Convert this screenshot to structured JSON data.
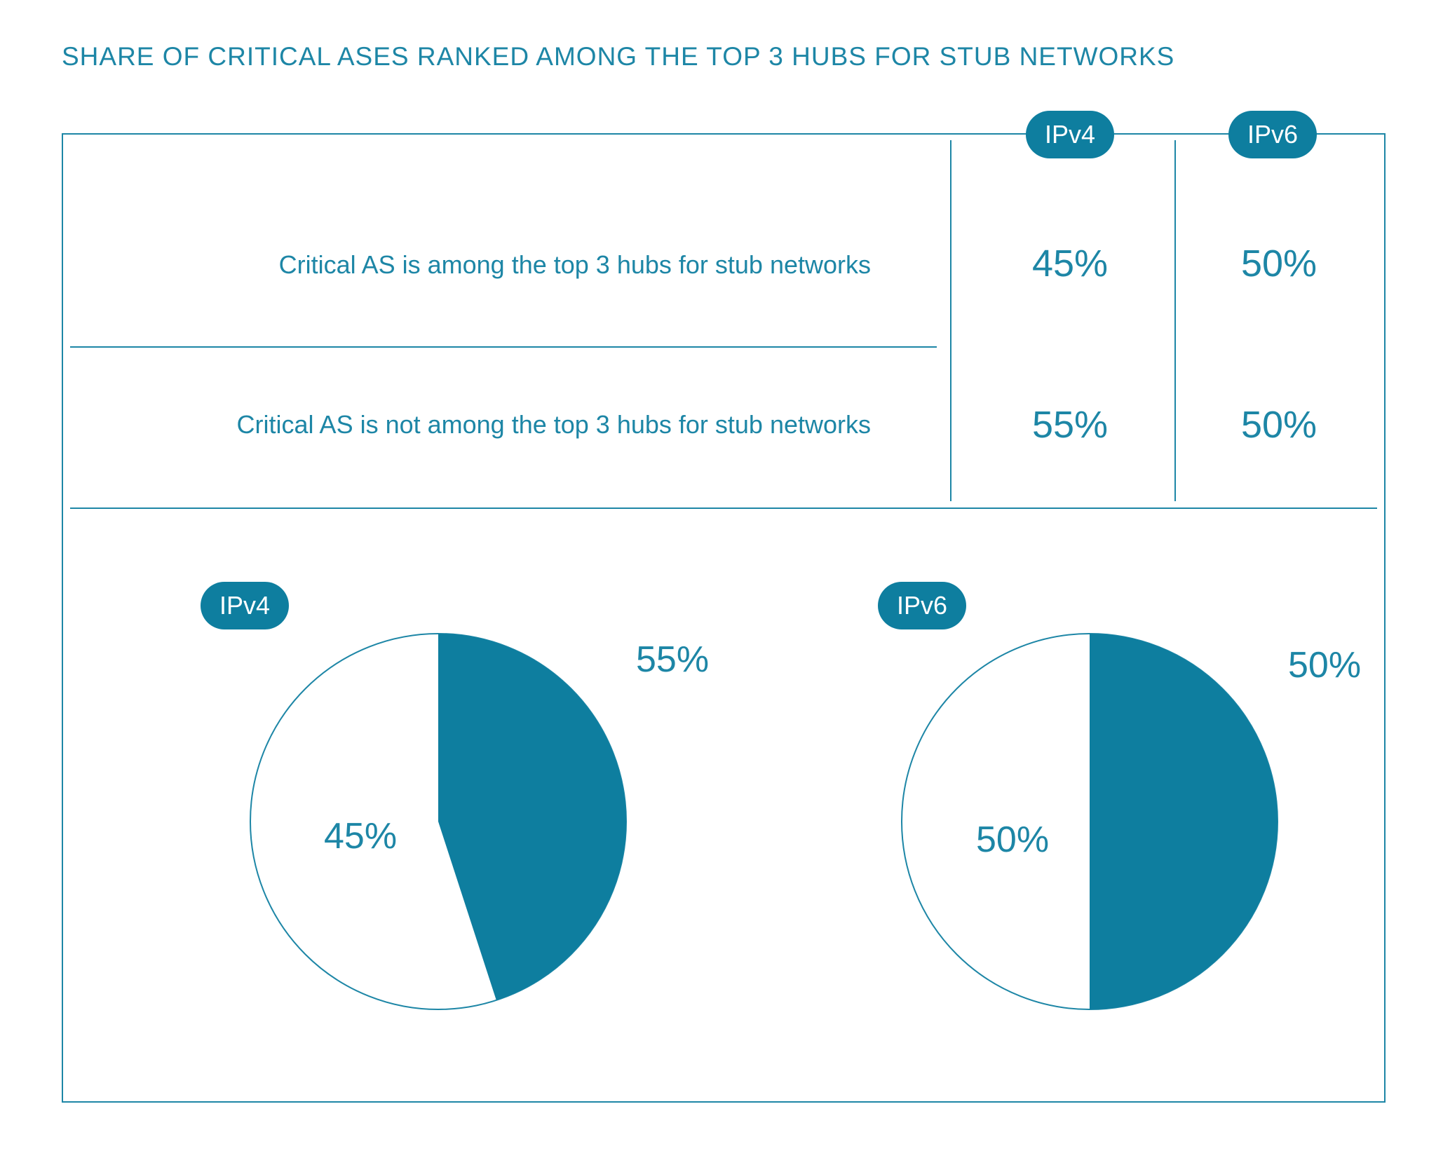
{
  "title": "SHARE OF CRITICAL ASES RANKED AMONG THE TOP 3 HUBS FOR STUB NETWORKS",
  "colors": {
    "accent": "#1d86a6",
    "fill": "#0e7e9f",
    "background": "#ffffff"
  },
  "table": {
    "columns": [
      "IPv4",
      "IPv6"
    ],
    "rows": [
      {
        "label": "Critical AS is among the top 3 hubs for stub networks",
        "values": [
          "45%",
          "50%"
        ]
      },
      {
        "label": "Critical AS is not among the top 3 hubs for stub networks",
        "values": [
          "55%",
          "50%"
        ]
      }
    ]
  },
  "chart_data": [
    {
      "type": "pie",
      "title": "IPv4",
      "categories": [
        "Critical AS is among the top 3 hubs for stub networks",
        "Critical AS is not among the top 3 hubs for stub networks"
      ],
      "values": [
        45,
        55
      ],
      "slice_labels": [
        "45%",
        "55%"
      ]
    },
    {
      "type": "pie",
      "title": "IPv6",
      "categories": [
        "Critical AS is among the top 3 hubs for stub networks",
        "Critical AS is not among the top 3 hubs for stub networks"
      ],
      "values": [
        50,
        50
      ],
      "slice_labels": [
        "50%",
        "50%"
      ]
    }
  ]
}
